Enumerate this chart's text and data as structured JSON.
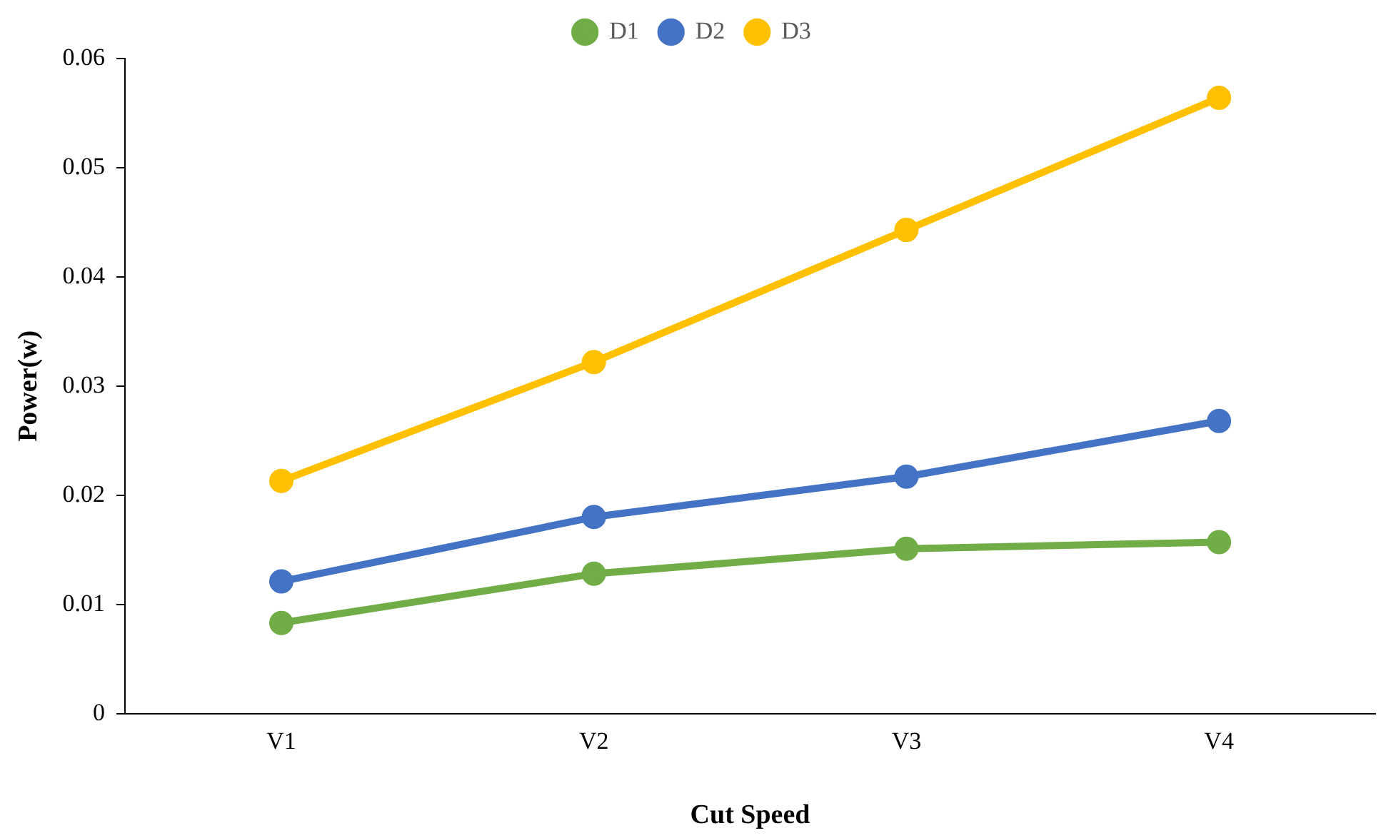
{
  "chart_data": {
    "type": "line",
    "xlabel": "Cut Speed",
    "ylabel": "Power(w)",
    "categories": [
      "V1",
      "V2",
      "V3",
      "V4"
    ],
    "series": [
      {
        "name": "D1",
        "color": "#70ad47",
        "values": [
          0.0083,
          0.0128,
          0.0151,
          0.0157
        ]
      },
      {
        "name": "D2",
        "color": "#4472c4",
        "values": [
          0.0121,
          0.018,
          0.0217,
          0.0268
        ]
      },
      {
        "name": "D3",
        "color": "#ffc000",
        "values": [
          0.0213,
          0.0322,
          0.0443,
          0.0564
        ]
      }
    ],
    "ylim": [
      0,
      0.06
    ],
    "yticks": [
      0,
      0.01,
      0.02,
      0.03,
      0.04,
      0.05,
      0.06
    ],
    "grid": false,
    "legend": "top",
    "marker": "circle",
    "line_style": "solid"
  }
}
